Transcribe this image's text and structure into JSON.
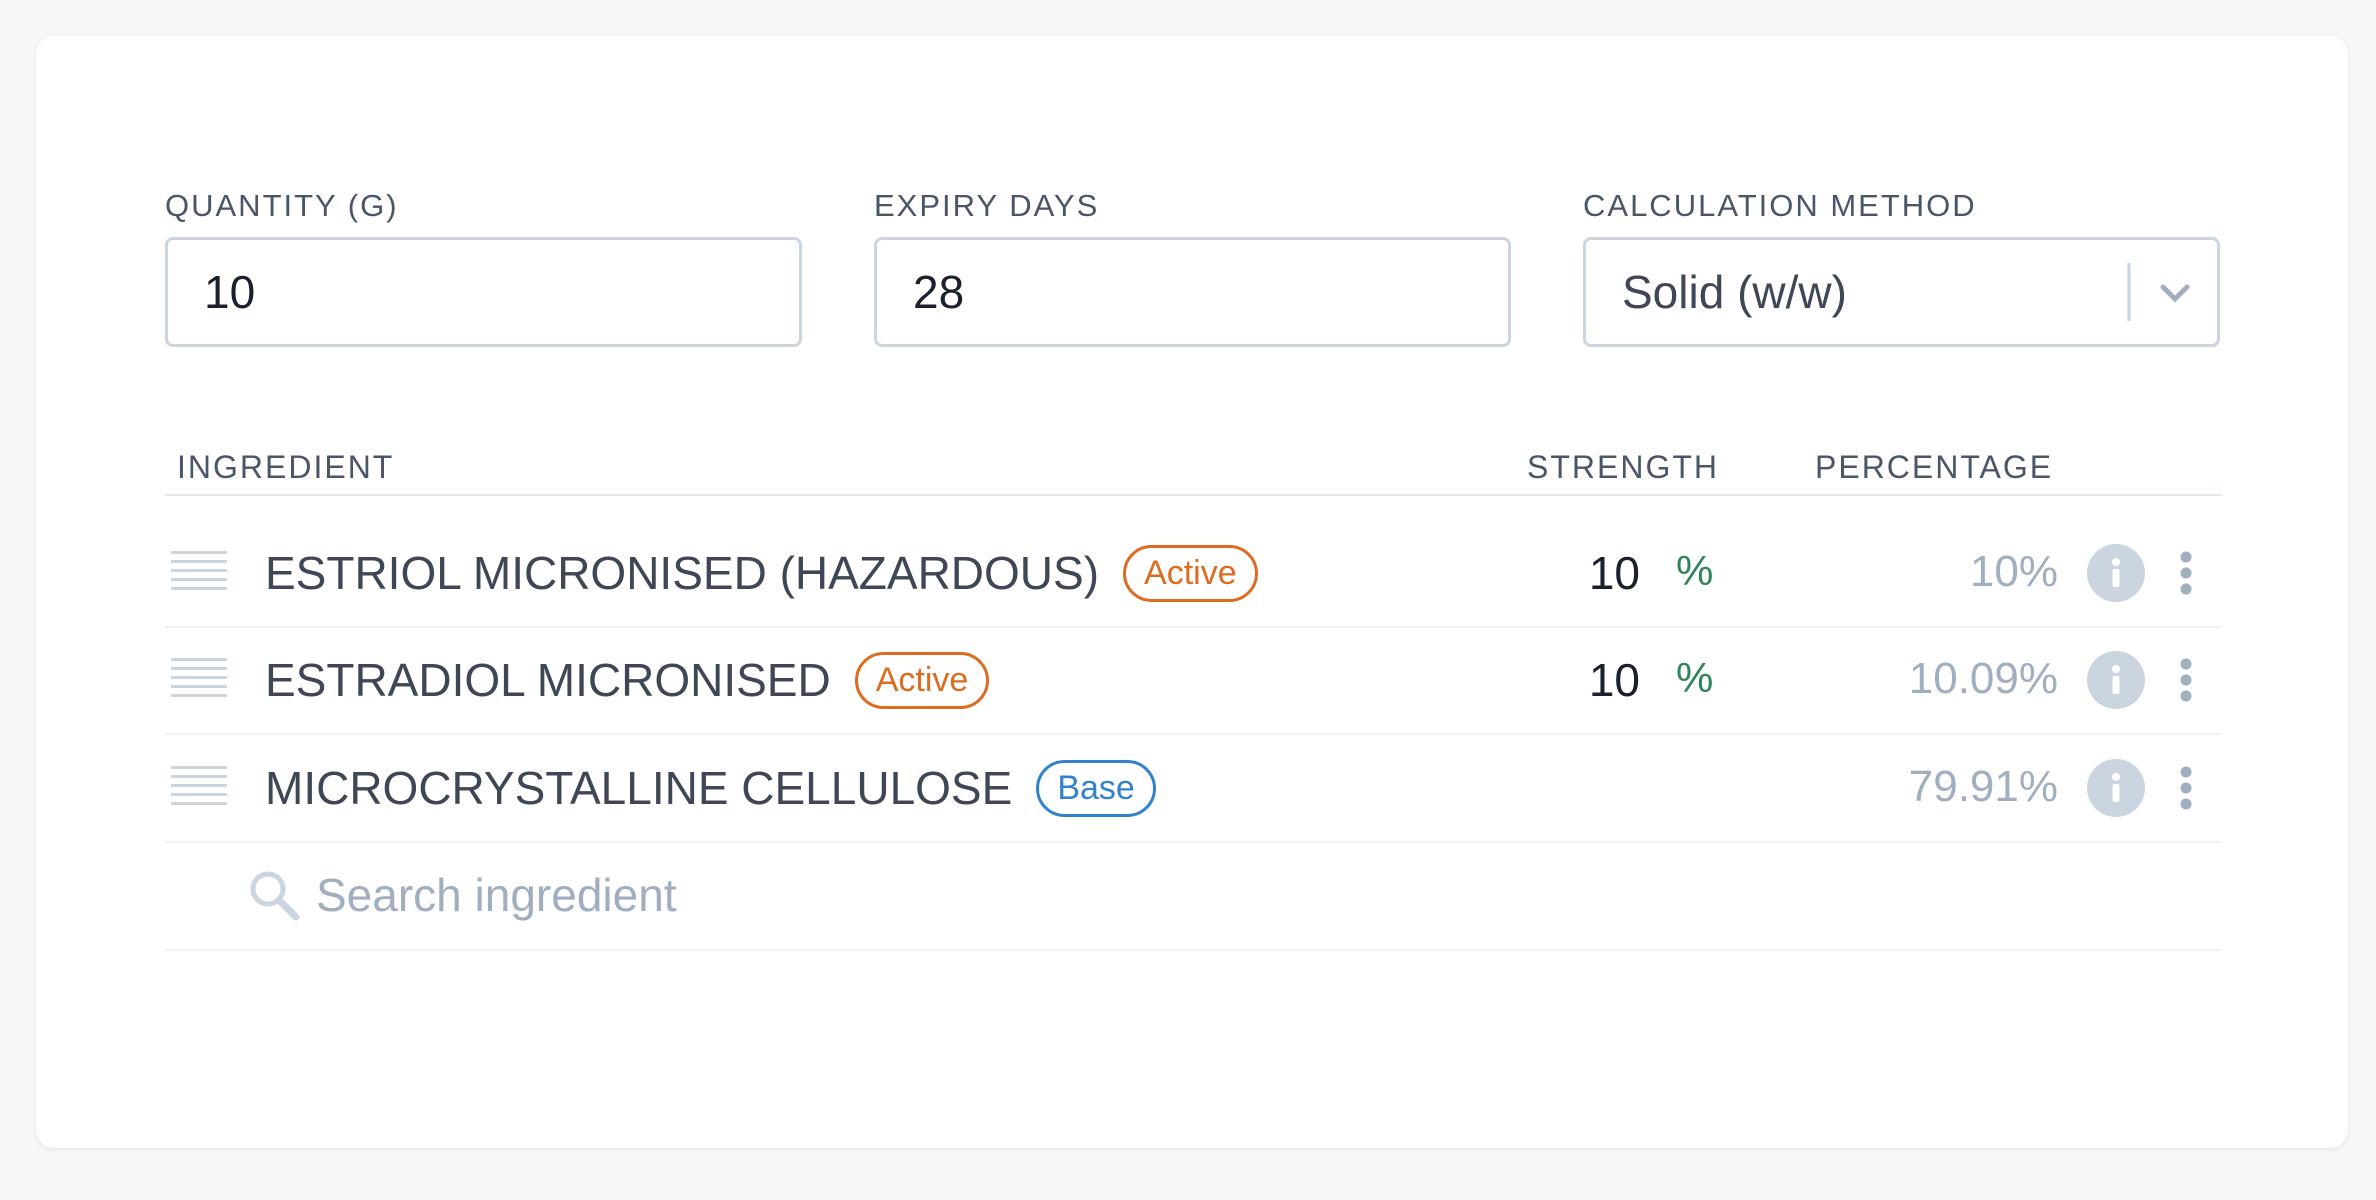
{
  "fields": [
    {
      "label": "QUANTITY (G)",
      "value": "10"
    },
    {
      "label": "EXPIRY DAYS",
      "value": "28"
    },
    {
      "label": "CALCULATION METHOD",
      "value": "Solid (w/w)"
    }
  ],
  "table": {
    "headers": [
      "INGREDIENT",
      "STRENGTH",
      "PERCENTAGE"
    ],
    "rows": [
      {
        "name": "ESTRIOL MICRONISED (HAZARDOUS)",
        "badge": "Active",
        "strength": "10",
        "unit": "%",
        "percentage": "10%"
      },
      {
        "name": "ESTRADIOL MICRONISED",
        "badge": "Active",
        "strength": "10",
        "unit": "%",
        "percentage": "10.09%"
      },
      {
        "name": "MICROCRYSTALLINE CELLULOSE",
        "badge": "Base",
        "percentage": "79.91%"
      }
    ],
    "search_placeholder": "Search ingredient"
  }
}
